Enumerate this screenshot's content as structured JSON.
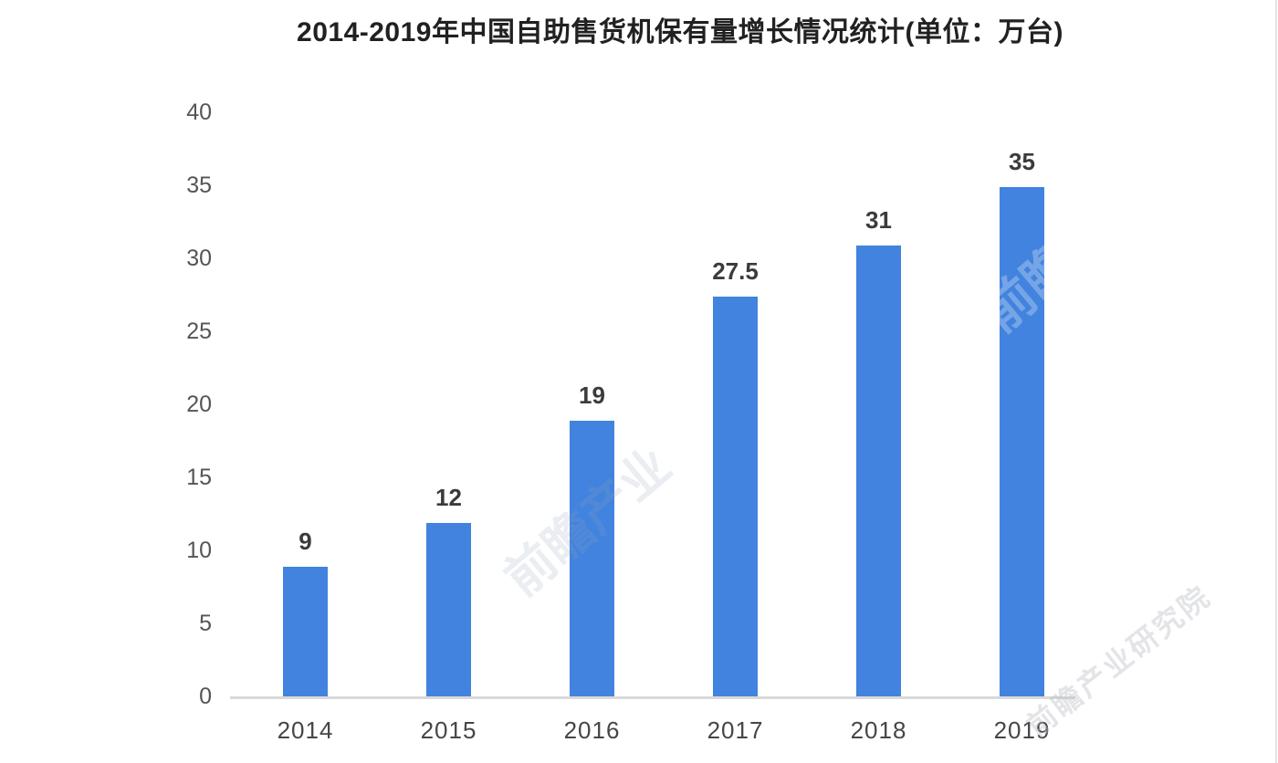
{
  "chart_data": {
    "type": "bar",
    "title": "2014-2019年中国自助售货机保有量增长情况统计(单位：万台)",
    "categories": [
      "2014",
      "2015",
      "2016",
      "2017",
      "2018",
      "2019"
    ],
    "values": [
      9,
      12,
      19,
      27.5,
      31,
      35
    ],
    "data_labels": [
      "9",
      "12",
      "19",
      "27.5",
      "31",
      "35"
    ],
    "unit_label": "万台",
    "xlabel": "",
    "ylabel": "",
    "ylim": [
      0,
      40
    ],
    "yticks": [
      "0",
      "5",
      "10",
      "15",
      "20",
      "25",
      "30",
      "35",
      "40"
    ],
    "grid": false,
    "legend": null,
    "bar_color": "#4183de",
    "axis_line_color": "#d9d9d9",
    "title_color": "#212121",
    "label_color": "#3b3b3b",
    "tick_color": "#555555"
  },
  "watermarks": [
    {
      "text": "前瞻产业"
    },
    {
      "text": "前瞻"
    },
    {
      "text": "前瞻产业研究院"
    }
  ]
}
